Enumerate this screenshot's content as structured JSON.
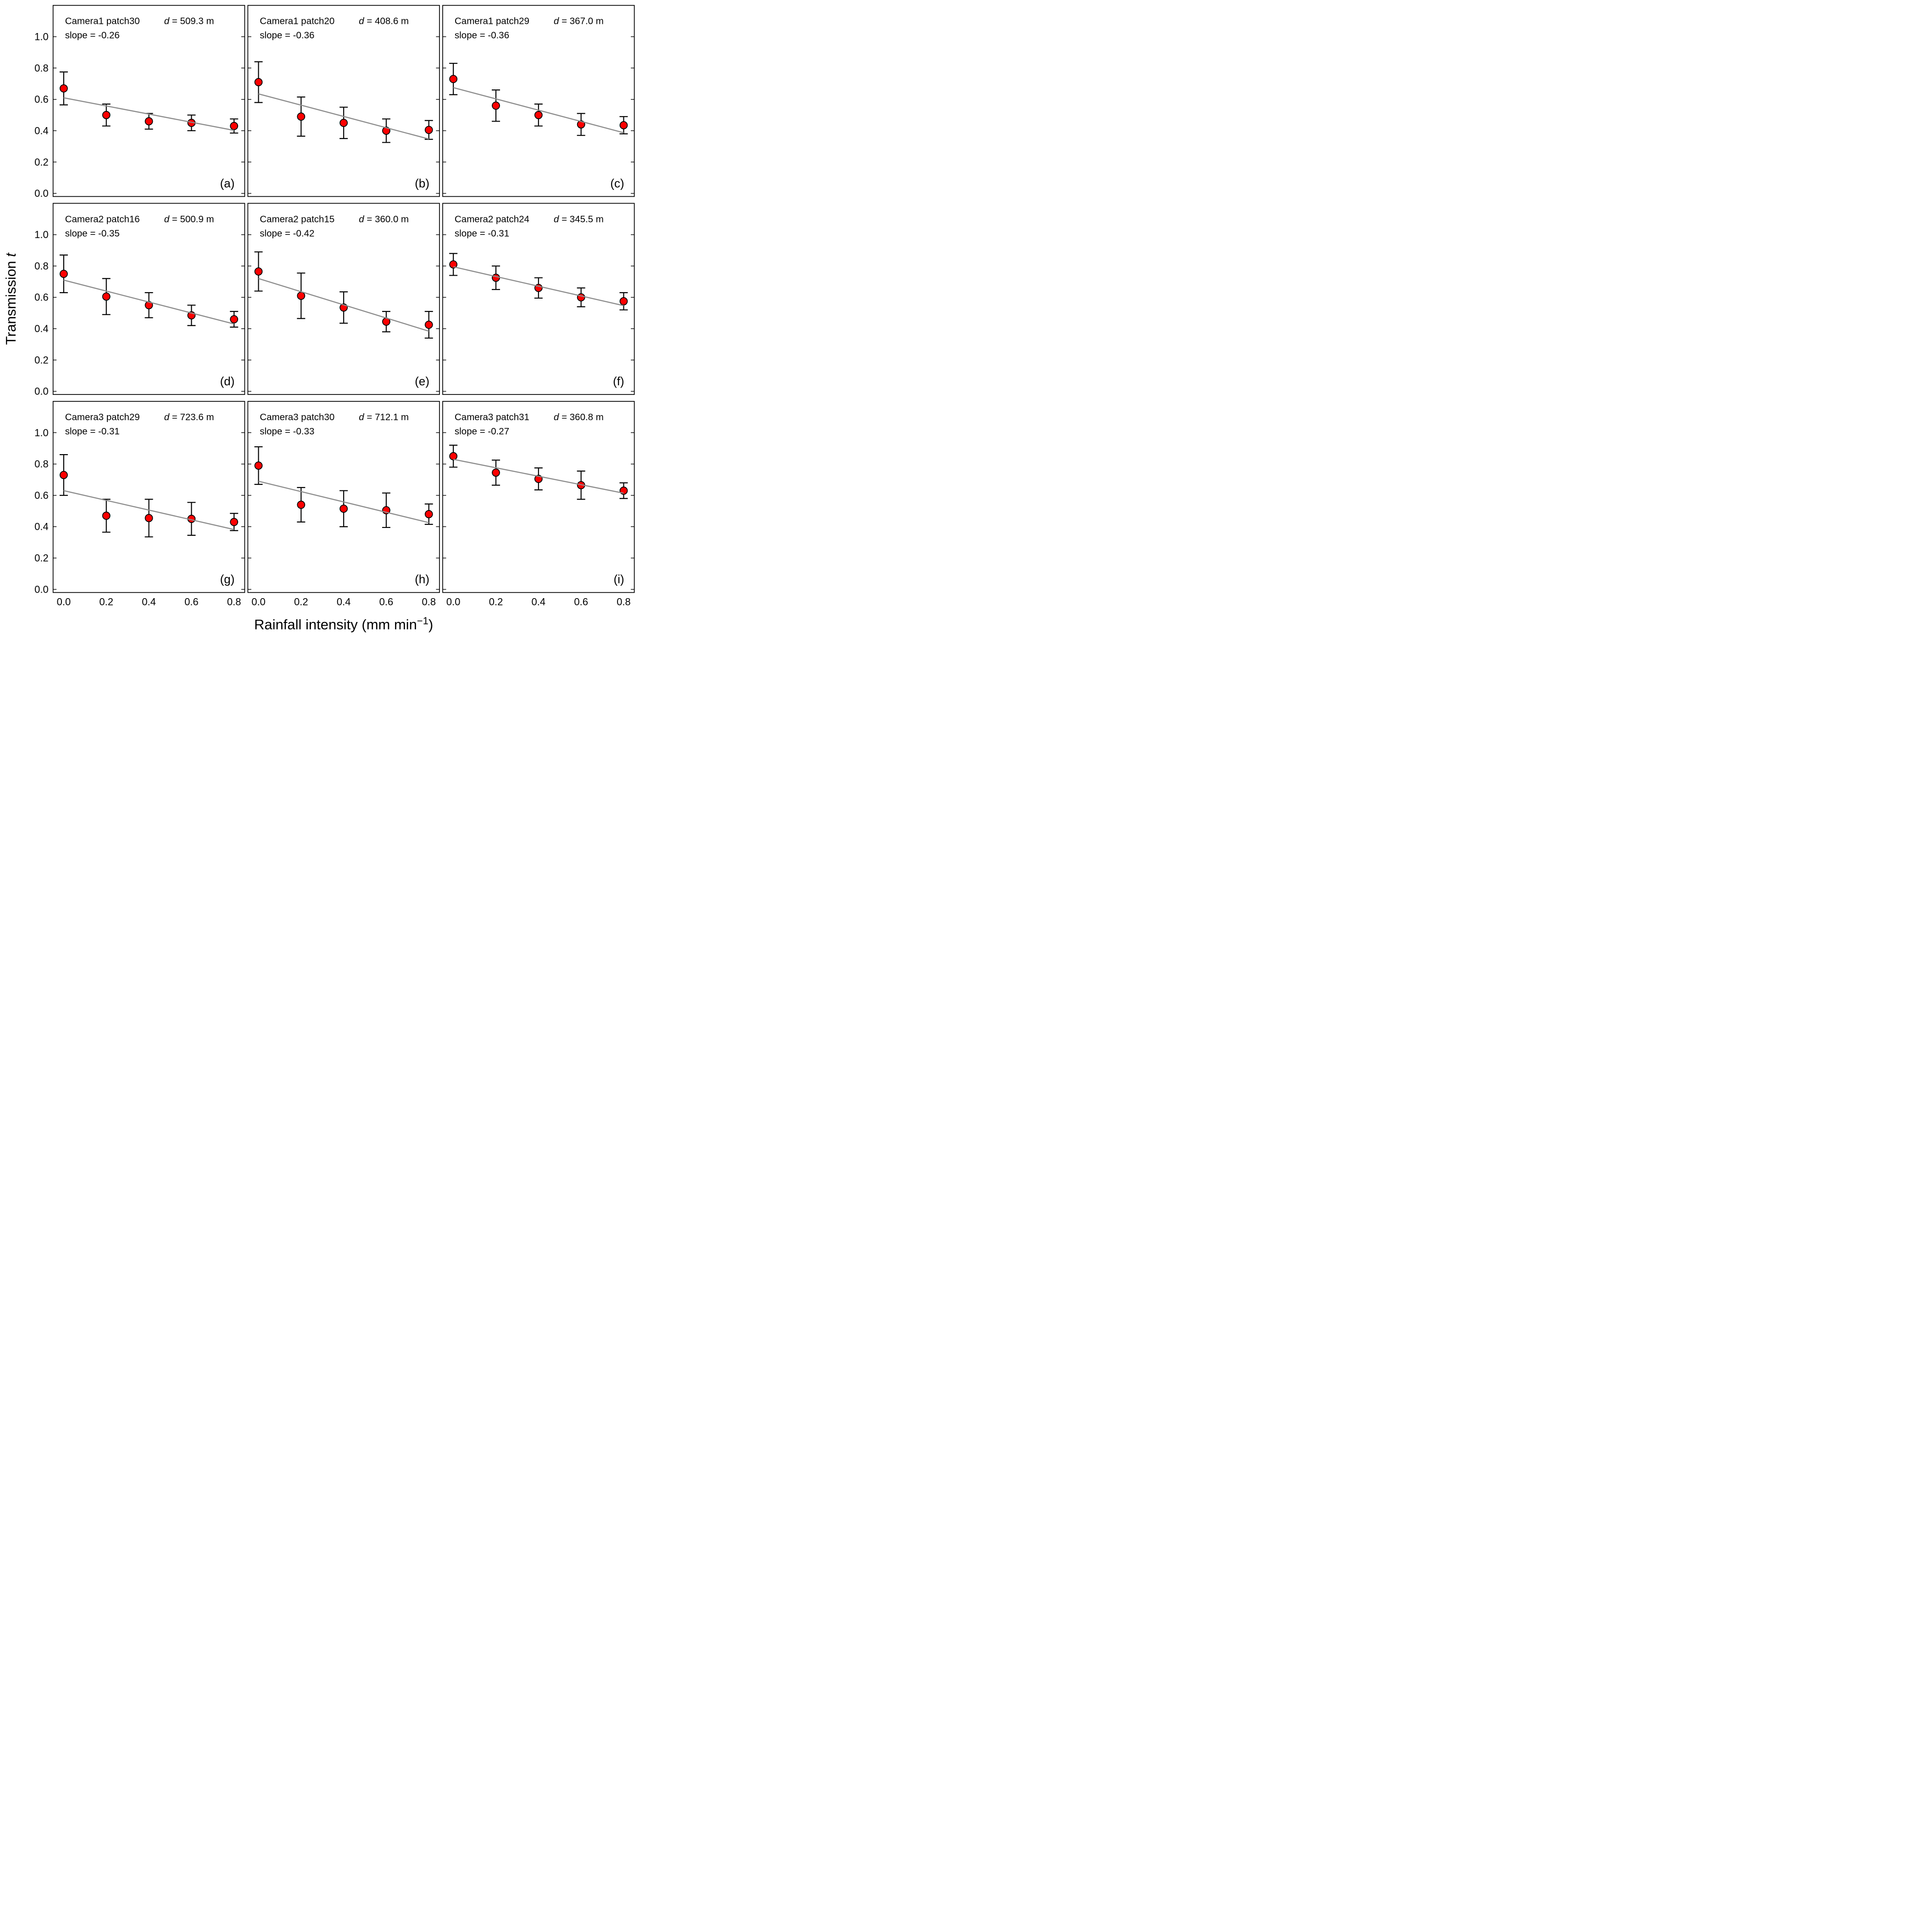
{
  "figure": {
    "background": "#ffffff",
    "colors": {
      "marker_fill": "#ff0000",
      "marker_edge": "#000000",
      "error_bar": "#000000",
      "fit_line": "#8c8c8c",
      "axis": "#000000"
    },
    "y_axis": {
      "title_regular": "Transmission ",
      "title_italic": "t",
      "tick_labels": [
        "0.0",
        "0.2",
        "0.4",
        "0.6",
        "0.8",
        "1.0"
      ],
      "tick_values": [
        0.0,
        0.2,
        0.4,
        0.6,
        0.8,
        1.0
      ],
      "range": [
        -0.02,
        1.2
      ]
    },
    "x_axis": {
      "title_main": "Rainfall intensity (mm min",
      "title_superscript": "−1",
      "title_close": ")",
      "tick_labels": [
        "0.0",
        "0.2",
        "0.4",
        "0.6",
        "0.8"
      ],
      "tick_values": [
        0.0,
        0.2,
        0.4,
        0.6,
        0.8
      ],
      "range": [
        -0.05,
        0.85
      ]
    }
  },
  "chart_data": [
    {
      "type": "scatter",
      "letter": "(a)",
      "title": "Camera1 patch30",
      "d_var": "d",
      "d_rest": " = 509.3 m",
      "slope_label": "slope = -0.26",
      "slope": -0.26,
      "intercept": 0.61,
      "x": [
        0.0,
        0.2,
        0.4,
        0.6,
        0.8
      ],
      "y": [
        0.67,
        0.5,
        0.46,
        0.45,
        0.43
      ],
      "yerr": [
        0.105,
        0.07,
        0.05,
        0.05,
        0.045
      ]
    },
    {
      "type": "scatter",
      "letter": "(b)",
      "title": "Camera1 patch20",
      "d_var": "d",
      "d_rest": " = 408.6 m",
      "slope_label": "slope = -0.36",
      "slope": -0.36,
      "intercept": 0.635,
      "x": [
        0.0,
        0.2,
        0.4,
        0.6,
        0.8
      ],
      "y": [
        0.71,
        0.49,
        0.45,
        0.4,
        0.405
      ],
      "yerr": [
        0.13,
        0.125,
        0.1,
        0.075,
        0.06
      ]
    },
    {
      "type": "scatter",
      "letter": "(c)",
      "title": "Camera1 patch29",
      "d_var": "d",
      "d_rest": " = 367.0 m",
      "slope_label": "slope = -0.36",
      "slope": -0.36,
      "intercept": 0.675,
      "x": [
        0.0,
        0.2,
        0.4,
        0.6,
        0.8
      ],
      "y": [
        0.73,
        0.56,
        0.5,
        0.44,
        0.435
      ],
      "yerr": [
        0.1,
        0.1,
        0.07,
        0.07,
        0.055
      ]
    },
    {
      "type": "scatter",
      "letter": "(d)",
      "title": "Camera2 patch16",
      "d_var": "d",
      "d_rest": " = 500.9 m",
      "slope_label": "slope = -0.35",
      "slope": -0.35,
      "intercept": 0.71,
      "x": [
        0.0,
        0.2,
        0.4,
        0.6,
        0.8
      ],
      "y": [
        0.75,
        0.605,
        0.55,
        0.485,
        0.46
      ],
      "yerr": [
        0.12,
        0.115,
        0.08,
        0.065,
        0.05
      ]
    },
    {
      "type": "scatter",
      "letter": "(e)",
      "title": "Camera2 patch15",
      "d_var": "d",
      "d_rest": " = 360.0 m",
      "slope_label": "slope = -0.42",
      "slope": -0.42,
      "intercept": 0.72,
      "x": [
        0.0,
        0.2,
        0.4,
        0.6,
        0.8
      ],
      "y": [
        0.765,
        0.61,
        0.535,
        0.445,
        0.425
      ],
      "yerr": [
        0.125,
        0.145,
        0.1,
        0.065,
        0.085
      ]
    },
    {
      "type": "scatter",
      "letter": "(f)",
      "title": "Camera2 patch24",
      "d_var": "d",
      "d_rest": " = 345.5 m",
      "slope_label": "slope = -0.31",
      "slope": -0.31,
      "intercept": 0.795,
      "x": [
        0.0,
        0.2,
        0.4,
        0.6,
        0.8
      ],
      "y": [
        0.81,
        0.725,
        0.66,
        0.6,
        0.575
      ],
      "yerr": [
        0.07,
        0.075,
        0.065,
        0.06,
        0.055
      ]
    },
    {
      "type": "scatter",
      "letter": "(g)",
      "title": "Camera3 patch29",
      "d_var": "d",
      "d_rest": " = 723.6 m",
      "slope_label": "slope = -0.31",
      "slope": -0.31,
      "intercept": 0.63,
      "x": [
        0.0,
        0.2,
        0.4,
        0.6,
        0.8
      ],
      "y": [
        0.73,
        0.47,
        0.455,
        0.45,
        0.43
      ],
      "yerr": [
        0.13,
        0.105,
        0.12,
        0.105,
        0.055
      ]
    },
    {
      "type": "scatter",
      "letter": "(h)",
      "title": "Camera3 patch30",
      "d_var": "d",
      "d_rest": " = 712.1 m",
      "slope_label": "slope = -0.33",
      "slope": -0.33,
      "intercept": 0.69,
      "x": [
        0.0,
        0.2,
        0.4,
        0.6,
        0.8
      ],
      "y": [
        0.79,
        0.54,
        0.515,
        0.505,
        0.48
      ],
      "yerr": [
        0.12,
        0.11,
        0.115,
        0.11,
        0.065
      ]
    },
    {
      "type": "scatter",
      "letter": "(i)",
      "title": "Camera3 patch31",
      "d_var": "d",
      "d_rest": " = 360.8 m",
      "slope_label": "slope = -0.27",
      "slope": -0.27,
      "intercept": 0.83,
      "x": [
        0.0,
        0.2,
        0.4,
        0.6,
        0.8
      ],
      "y": [
        0.85,
        0.745,
        0.705,
        0.665,
        0.63
      ],
      "yerr": [
        0.07,
        0.08,
        0.07,
        0.09,
        0.05
      ]
    }
  ]
}
